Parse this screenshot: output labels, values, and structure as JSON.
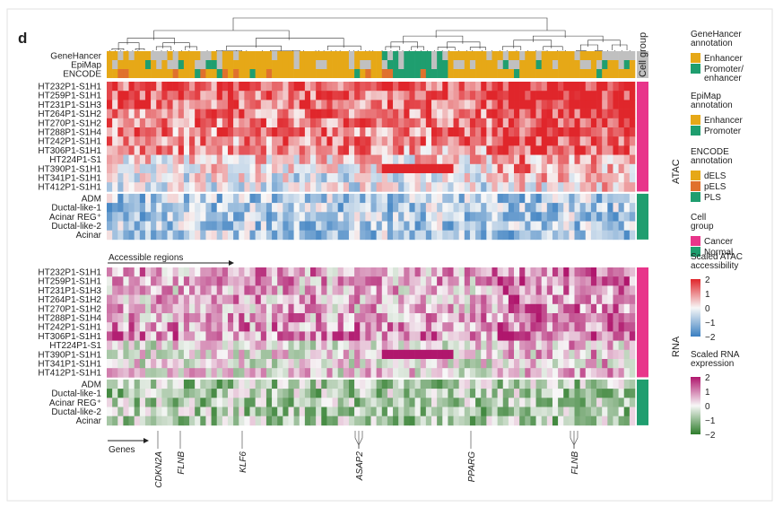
{
  "panel_label": "d",
  "annotation_rows": [
    "GeneHancer",
    "EpiMap",
    "ENCODE"
  ],
  "cell_group_header": "Cell group",
  "atac_block_label": "ATAC",
  "rna_block_label": "RNA",
  "atac_axis_label": "Accessible regions",
  "rna_axis_label": "Genes",
  "gene_labels": [
    "CDKN2A",
    "FLNB",
    "KLF6",
    "ASAP2",
    "PPARG",
    "FLNB"
  ],
  "legend": {
    "genehancer": {
      "title": "GeneHancer annotation",
      "items": [
        {
          "label": "Enhancer",
          "color": "#e6a817"
        },
        {
          "label": "Promoter/ enhancer",
          "color": "#1f9e6f"
        }
      ]
    },
    "epimap": {
      "title": "EpiMap annotation",
      "items": [
        {
          "label": "Enhancer",
          "color": "#e6a817"
        },
        {
          "label": "Promoter",
          "color": "#1f9e6f"
        }
      ]
    },
    "encode": {
      "title": "ENCODE annotation",
      "items": [
        {
          "label": "dELS",
          "color": "#e6a817"
        },
        {
          "label": "pELS",
          "color": "#e0712d"
        },
        {
          "label": "PLS",
          "color": "#1f9e6f"
        }
      ]
    },
    "cellgroup": {
      "title": "Cell group",
      "items": [
        {
          "label": "Cancer",
          "color": "#e8358a"
        },
        {
          "label": "Normal",
          "color": "#1f9e6f"
        }
      ]
    },
    "atac_scale": {
      "title": "Scaled ATAC accessibility",
      "ticks": [
        "2",
        "1",
        "0",
        "−1",
        "−2"
      ]
    },
    "rna_scale": {
      "title": "Scaled RNA expression",
      "ticks": [
        "2",
        "1",
        "0",
        "−1",
        "−2"
      ]
    }
  },
  "chart_data": {
    "type": "heatmap",
    "title": "",
    "samples_cancer": [
      "HT232P1-S1H1",
      "HT259P1-S1H1",
      "HT231P1-S1H3",
      "HT264P1-S1H2",
      "HT270P1-S1H2",
      "HT288P1-S1H4",
      "HT242P1-S1H1",
      "HT306P1-S1H1",
      "HT224P1-S1",
      "HT390P1-S1H1",
      "HT341P1-S1H1",
      "HT412P1-S1H1"
    ],
    "samples_normal": [
      "ADM",
      "Ductal-like-1",
      "Acinar REG⁺",
      "Ductal-like-2",
      "Acinar"
    ],
    "colors": {
      "atac_high": "#e0262b",
      "atac_mid": "#f7f7f7",
      "atac_low": "#3a7fc1",
      "rna_high": "#b0176d",
      "rna_mid": "#f7f7f7",
      "rna_low": "#2f7d2c",
      "annot_gray": "#c0c0c0"
    },
    "value_range": [
      -2,
      2
    ],
    "atac_profile": {
      "cancer_means": [
        1.5,
        1.4,
        1.3,
        1.2,
        1.1,
        1.1,
        1.0,
        0.9,
        0.3,
        0.2,
        -0.2,
        -0.3
      ],
      "normal_mean": -0.75
    },
    "rna_profile": {
      "cancer_means": [
        0.7,
        0.6,
        0.5,
        0.6,
        0.5,
        0.7,
        0.8,
        0.9,
        0.0,
        0.1,
        0.0,
        0.1
      ],
      "normal_mean": -0.7
    }
  }
}
